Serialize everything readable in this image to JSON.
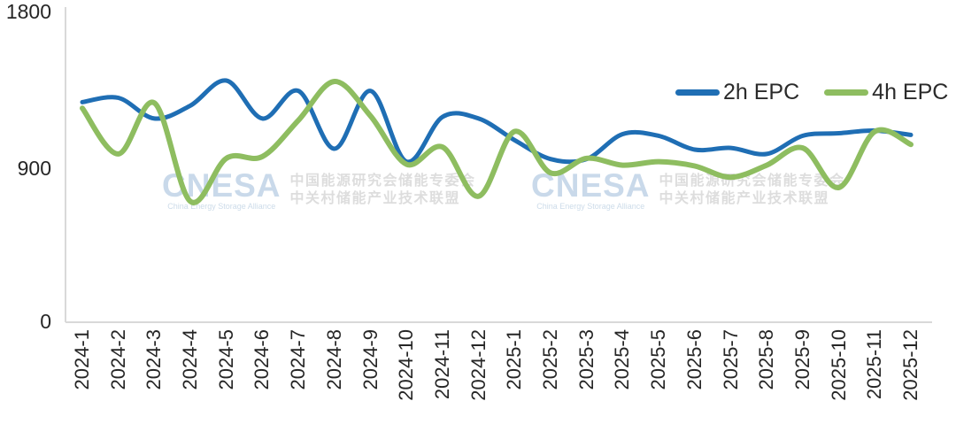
{
  "colors": {
    "series_2h": "#1f6eb4",
    "series_4h": "#8ebd60",
    "axis_line": "#d9d9d9",
    "tick_text": "#262626",
    "watermark_logo": "#b7cde3",
    "watermark_cn_text": "#d2d2d2"
  },
  "legend": [
    {
      "label": "2h EPC"
    },
    {
      "label": "4h EPC"
    }
  ],
  "watermark": {
    "logo": "CNESA",
    "logo_subtitle": "China Energy Storage Alliance",
    "line1": "中国能源研究会储能专委会",
    "line2": "中关村储能产业技术联盟"
  },
  "chart_data": {
    "type": "line",
    "smooth": true,
    "grid": false,
    "legend_position": "top-right",
    "ylim": [
      0,
      1800
    ],
    "yticks": [
      0,
      900,
      1800
    ],
    "x": [
      "2024-1",
      "2024-2",
      "2024-3",
      "2024-4",
      "2024-5",
      "2024-6",
      "2024-7",
      "2024-8",
      "2024-9",
      "2024-10",
      "2024-11",
      "2024-12",
      "2025-1",
      "2025-2",
      "2025-3",
      "2025-4",
      "2025-5",
      "2025-6",
      "2025-7",
      "2025-8",
      "2025-9",
      "2025-10",
      "2025-11",
      "2025-12"
    ],
    "series": [
      {
        "name": "2h EPC",
        "color": "#1f6eb4",
        "width": 5,
        "values": [
          1275,
          1300,
          1180,
          1255,
          1400,
          1180,
          1340,
          1005,
          1340,
          930,
          1190,
          1180,
          1055,
          945,
          945,
          1090,
          1080,
          1000,
          1010,
          975,
          1080,
          1095,
          1110,
          1085
        ]
      },
      {
        "name": "4h EPC",
        "color": "#8ebd60",
        "width": 6,
        "values": [
          1240,
          975,
          1270,
          700,
          950,
          960,
          1170,
          1395,
          1195,
          915,
          1015,
          730,
          1105,
          865,
          950,
          910,
          930,
          905,
          840,
          910,
          1010,
          780,
          1105,
          1030
        ]
      }
    ]
  }
}
